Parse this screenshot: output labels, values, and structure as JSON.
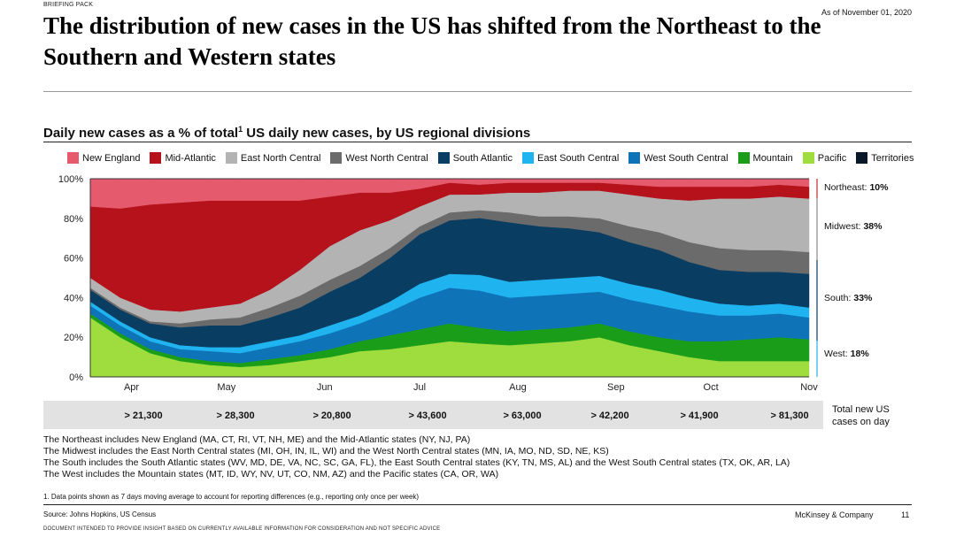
{
  "header": {
    "briefing": "BRIEFING PACK",
    "as_of": "As of November 01, 2020",
    "title": "The distribution of new cases in the US has shifted from the Northeast to the Southern and Western states"
  },
  "chart_data": {
    "type": "area",
    "stacked": true,
    "title": "Daily new cases as a % of total",
    "title_sup": "1",
    "title_rest": " US daily new cases, by US regional divisions",
    "ylabel": "",
    "ylim": [
      0,
      100
    ],
    "y_ticks": [
      "0%",
      "20%",
      "40%",
      "60%",
      "80%",
      "100%"
    ],
    "x_ticks": [
      "Apr",
      "May",
      "Jun",
      "Jul",
      "Aug",
      "Sep",
      "Oct",
      "Nov"
    ],
    "x_range": [
      "Mar 19",
      "Nov 1"
    ],
    "dates": [
      "Mar 19",
      "Mar 22",
      "Mar 25",
      "Apr 1",
      "Apr 10",
      "Apr 20",
      "May 1",
      "May 10",
      "May 20",
      "Jun 1",
      "Jun 10",
      "Jun 20",
      "Jul 1",
      "Jul 10",
      "Jul 20",
      "Aug 1",
      "Aug 10",
      "Aug 20",
      "Sep 1",
      "Sep 10",
      "Sep 20",
      "Oct 1",
      "Oct 10",
      "Oct 20",
      "Nov 1"
    ],
    "series": [
      {
        "name": "Pacific",
        "color": "#9fdc3d",
        "values": [
          30,
          20,
          12,
          8,
          6,
          5,
          6,
          8,
          10,
          13,
          14,
          16,
          18,
          17,
          16,
          17,
          18,
          20,
          16,
          13,
          10,
          8,
          8,
          8,
          8
        ]
      },
      {
        "name": "Mountain",
        "color": "#1a9e1a",
        "values": [
          2,
          2,
          2,
          2,
          2,
          2,
          3,
          3,
          4,
          5,
          7,
          8,
          9,
          8,
          7,
          7,
          7,
          7,
          7,
          7,
          8,
          10,
          11,
          12,
          11
        ]
      },
      {
        "name": "West South Central",
        "color": "#0e73b7",
        "values": [
          4,
          4,
          4,
          4,
          5,
          5,
          6,
          7,
          8,
          9,
          12,
          16,
          18,
          19,
          17,
          17,
          17,
          16,
          16,
          16,
          15,
          13,
          12,
          12,
          11
        ]
      },
      {
        "name": "East South Central",
        "color": "#1fb3f0",
        "values": [
          2,
          2,
          2,
          2,
          2,
          3,
          3,
          3,
          4,
          4,
          5,
          7,
          7,
          8,
          8,
          8,
          8,
          8,
          8,
          8,
          7,
          6,
          5,
          5,
          5
        ]
      },
      {
        "name": "South Atlantic",
        "color": "#0a3d62",
        "values": [
          6,
          6,
          7,
          9,
          11,
          11,
          12,
          14,
          17,
          19,
          22,
          25,
          27,
          29,
          30,
          27,
          25,
          22,
          21,
          20,
          18,
          17,
          17,
          16,
          17
        ]
      },
      {
        "name": "West North Central",
        "color": "#6b6b6b",
        "values": [
          1,
          1,
          1,
          2,
          3,
          4,
          5,
          6,
          6,
          6,
          5,
          4,
          4,
          4,
          5,
          5,
          6,
          7,
          8,
          9,
          10,
          11,
          11,
          11,
          11
        ]
      },
      {
        "name": "East North Central",
        "color": "#b3b3b3",
        "values": [
          5,
          5,
          6,
          6,
          6,
          7,
          9,
          13,
          17,
          18,
          14,
          10,
          9,
          8,
          10,
          12,
          13,
          14,
          16,
          17,
          21,
          25,
          26,
          27,
          27
        ]
      },
      {
        "name": "Mid-Atlantic",
        "color": "#b5121b",
        "values": [
          36,
          45,
          53,
          55,
          54,
          52,
          45,
          35,
          25,
          19,
          14,
          9,
          6,
          5,
          5,
          5,
          4,
          4,
          5,
          6,
          7,
          6,
          6,
          6,
          6
        ]
      },
      {
        "name": "New England",
        "color": "#e55a6c",
        "values": [
          14,
          15,
          13,
          12,
          11,
          11,
          11,
          11,
          9,
          7,
          7,
          5,
          2,
          3,
          2,
          2,
          2,
          2,
          3,
          4,
          4,
          4,
          4,
          3,
          4
        ]
      },
      {
        "name": "Territories",
        "color": "#081828",
        "values": [
          0,
          0,
          0,
          0,
          0,
          0,
          0,
          0,
          0,
          0,
          0,
          0,
          0,
          0,
          0,
          0,
          0,
          0,
          0,
          0,
          0,
          0,
          0,
          0,
          0
        ]
      }
    ],
    "region_labels": [
      {
        "name": "Northeast:",
        "value": "10%"
      },
      {
        "name": "Midwest:",
        "value": "38%"
      },
      {
        "name": "South:",
        "value": "33%"
      },
      {
        "name": "West:",
        "value": "18%"
      }
    ],
    "totals": {
      "label": "Total new US cases on day",
      "values": [
        "> 21,300",
        "> 28,300",
        "> 20,800",
        "> 43,600",
        "> 63,000",
        "> 42,200",
        "> 41,900",
        "> 81,300"
      ]
    }
  },
  "notes": [
    "The Northeast includes New England (MA, CT, RI, VT, NH, ME) and the Mid-Atlantic states (NY, NJ, PA)",
    "The Midwest includes the East North Central states (MI, OH, IN, IL, WI) and the West North Central states (MN, IA, MO, ND, SD, NE, KS)",
    "The South includes the South Atlantic states (WV, MD, DE, VA, NC, SC, GA, FL), the East South Central states (KY, TN, MS, AL) and the West South Central states (TX, OK, AR, LA)",
    "The West includes the Mountain states (MT, ID, WY, NV, UT, CO, NM, AZ) and the Pacific states (CA, OR, WA)"
  ],
  "footer": {
    "footnote": "1. Data points shown as 7 days moving average to account for reporting differences (e.g., reporting only once per week)",
    "source": "Source: Johns Hopkins, US Census",
    "company": "McKinsey & Company",
    "page": "11",
    "disclaimer": "DOCUMENT INTENDED TO PROVIDE INSIGHT BASED ON CURRENTLY AVAILABLE INFORMATION FOR CONSIDERATION AND NOT SPECIFIC ADVICE"
  }
}
